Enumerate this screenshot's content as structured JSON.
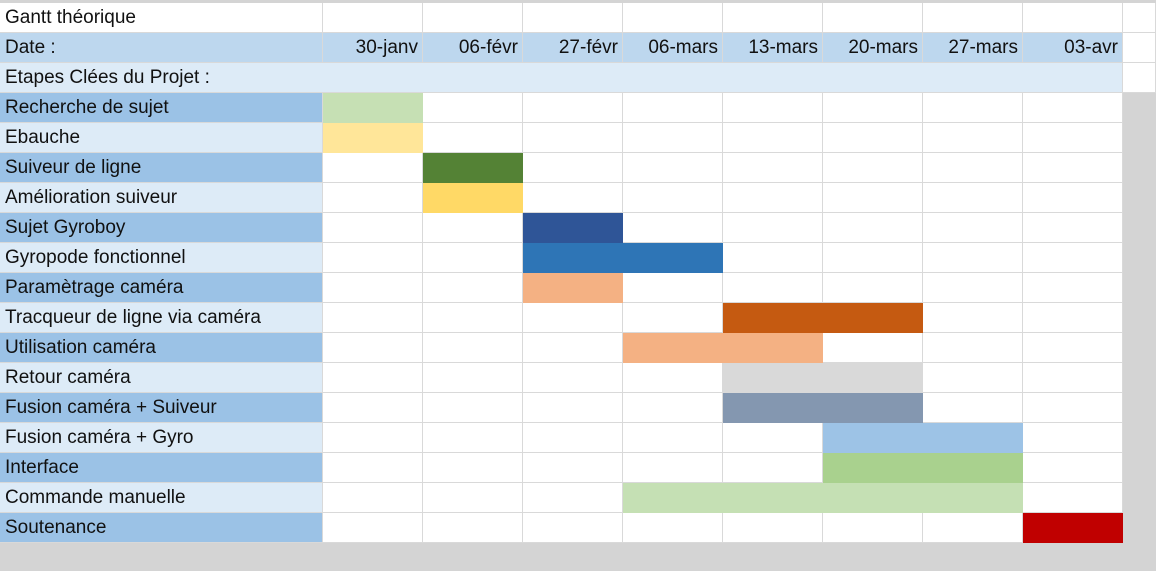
{
  "title": "Gantt théorique",
  "date_label": "Date :",
  "section_label": "Etapes Clées du Projet :",
  "colors": {
    "header_blue": "#bdd7ee",
    "section_blue": "#ddebf7",
    "label_dark": "#9bc2e6",
    "label_light": "#ddebf7",
    "sheet_gray": "#d4d4d4",
    "gridline": "#d9d9d9"
  },
  "chart_data": {
    "type": "gantt",
    "title": "Gantt théorique",
    "x_label": "Date :",
    "categories": [
      "30-janv",
      "06-févr",
      "27-févr",
      "06-mars",
      "13-mars",
      "20-mars",
      "27-mars",
      "03-avr"
    ],
    "tasks": [
      {
        "name": "Recherche de sujet",
        "start": "30-janv",
        "end": "06-févr",
        "color": "#c6e0b4"
      },
      {
        "name": "Ebauche",
        "start": "30-janv",
        "end": "06-févr",
        "color": "#ffe699"
      },
      {
        "name": "Suiveur de ligne",
        "start": "06-févr",
        "end": "27-févr",
        "color": "#548235"
      },
      {
        "name": "Amélioration suiveur",
        "start": "06-févr",
        "end": "27-févr",
        "color": "#ffd966"
      },
      {
        "name": "Sujet Gyroboy",
        "start": "27-févr",
        "end": "06-mars",
        "color": "#2f5597"
      },
      {
        "name": "Gyropode fonctionnel",
        "start": "27-févr",
        "end": "13-mars",
        "color": "#2e75b6"
      },
      {
        "name": "Paramètrage caméra",
        "start": "27-févr",
        "end": "06-mars",
        "color": "#f4b183"
      },
      {
        "name": "Tracqueur de ligne via caméra",
        "start": "13-mars",
        "end": "27-mars",
        "color": "#c55a11"
      },
      {
        "name": "Utilisation caméra",
        "start": "06-mars",
        "end": "20-mars",
        "color": "#f4b183"
      },
      {
        "name": "Retour caméra",
        "start": "13-mars",
        "end": "27-mars",
        "color": "#d9d9d9"
      },
      {
        "name": "Fusion caméra + Suiveur",
        "start": "13-mars",
        "end": "27-mars",
        "color": "#8497b0"
      },
      {
        "name": "Fusion caméra + Gyro",
        "start": "20-mars",
        "end": "03-avr",
        "color": "#9dc3e6"
      },
      {
        "name": "Interface",
        "start": "20-mars",
        "end": "03-avr",
        "color": "#a9d18e"
      },
      {
        "name": "Commande manuelle",
        "start": "06-mars",
        "end": "03-avr",
        "color": "#c5e0b4"
      },
      {
        "name": "Soutenance",
        "start": "03-avr",
        "end": "end",
        "color": "#c00000"
      }
    ]
  }
}
